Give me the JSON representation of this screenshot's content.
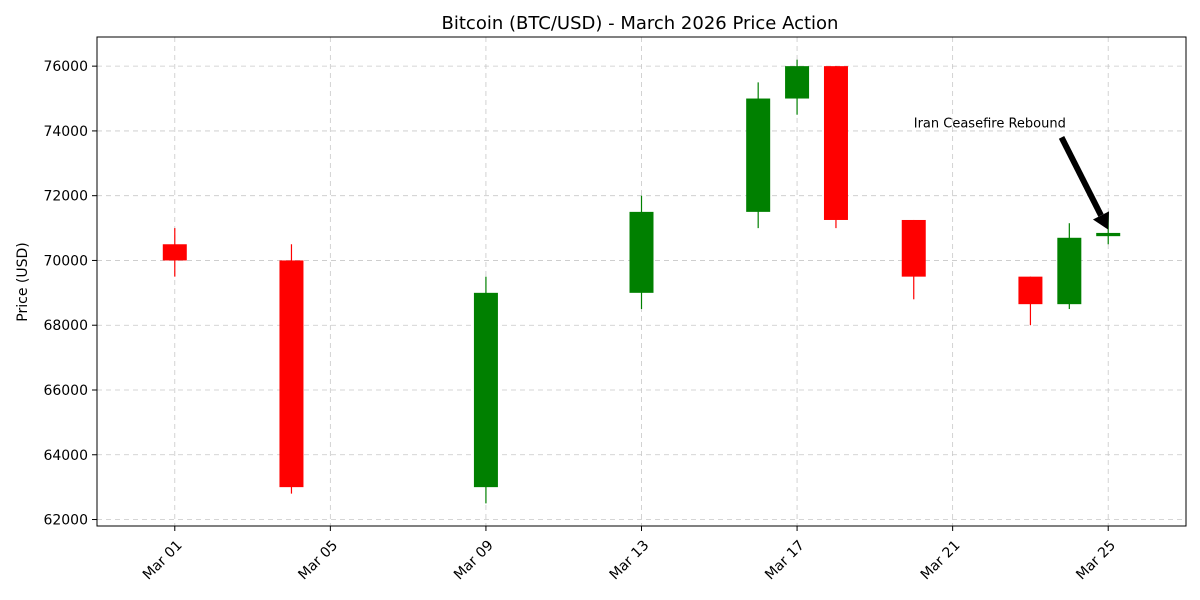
{
  "chart_data": {
    "type": "candlestick",
    "title": "Bitcoin (BTC/USD) - March 2026 Price Action",
    "xlabel": "",
    "ylabel": "Price (USD)",
    "ylim": [
      61800,
      76900
    ],
    "xlim": [
      "2026-02-27",
      "2026-03-27"
    ],
    "grid": true,
    "y_ticks": [
      62000,
      64000,
      66000,
      68000,
      70000,
      72000,
      74000,
      76000
    ],
    "x_ticks": [
      {
        "date": "2026-03-01",
        "label": "Mar 01"
      },
      {
        "date": "2026-03-05",
        "label": "Mar 05"
      },
      {
        "date": "2026-03-09",
        "label": "Mar 09"
      },
      {
        "date": "2026-03-13",
        "label": "Mar 13"
      },
      {
        "date": "2026-03-17",
        "label": "Mar 17"
      },
      {
        "date": "2026-03-21",
        "label": "Mar 21"
      },
      {
        "date": "2026-03-25",
        "label": "Mar 25"
      }
    ],
    "colors": {
      "up": "#008000",
      "down": "#ff0000"
    },
    "candles": [
      {
        "date": "2026-03-01",
        "open": 70500,
        "high": 71000,
        "low": 69500,
        "close": 70000
      },
      {
        "date": "2026-03-04",
        "open": 70000,
        "high": 70500,
        "low": 62800,
        "close": 63000
      },
      {
        "date": "2026-03-09",
        "open": 63000,
        "high": 69500,
        "low": 62500,
        "close": 69000
      },
      {
        "date": "2026-03-13",
        "open": 69000,
        "high": 72000,
        "low": 68500,
        "close": 71500
      },
      {
        "date": "2026-03-16",
        "open": 71500,
        "high": 75500,
        "low": 71000,
        "close": 75000
      },
      {
        "date": "2026-03-17",
        "open": 75000,
        "high": 76200,
        "low": 74500,
        "close": 76000
      },
      {
        "date": "2026-03-18",
        "open": 76000,
        "high": 76000,
        "low": 71000,
        "close": 71250
      },
      {
        "date": "2026-03-20",
        "open": 71250,
        "high": 71250,
        "low": 68800,
        "close": 69500
      },
      {
        "date": "2026-03-23",
        "open": 69500,
        "high": 69500,
        "low": 68000,
        "close": 68650
      },
      {
        "date": "2026-03-24",
        "open": 68650,
        "high": 71150,
        "low": 68500,
        "close": 70700
      },
      {
        "date": "2026-03-25",
        "open": 70750,
        "high": 71500,
        "low": 70500,
        "close": 70850
      }
    ],
    "annotations": [
      {
        "text": "Iran Ceasefire Rebound",
        "text_date": "2026-03-20",
        "text_price": 74100,
        "arrow_from_date": "2026-03-23.8",
        "arrow_from_price": 73800,
        "arrow_to_date": "2026-03-25",
        "arrow_to_price": 70950
      }
    ]
  }
}
